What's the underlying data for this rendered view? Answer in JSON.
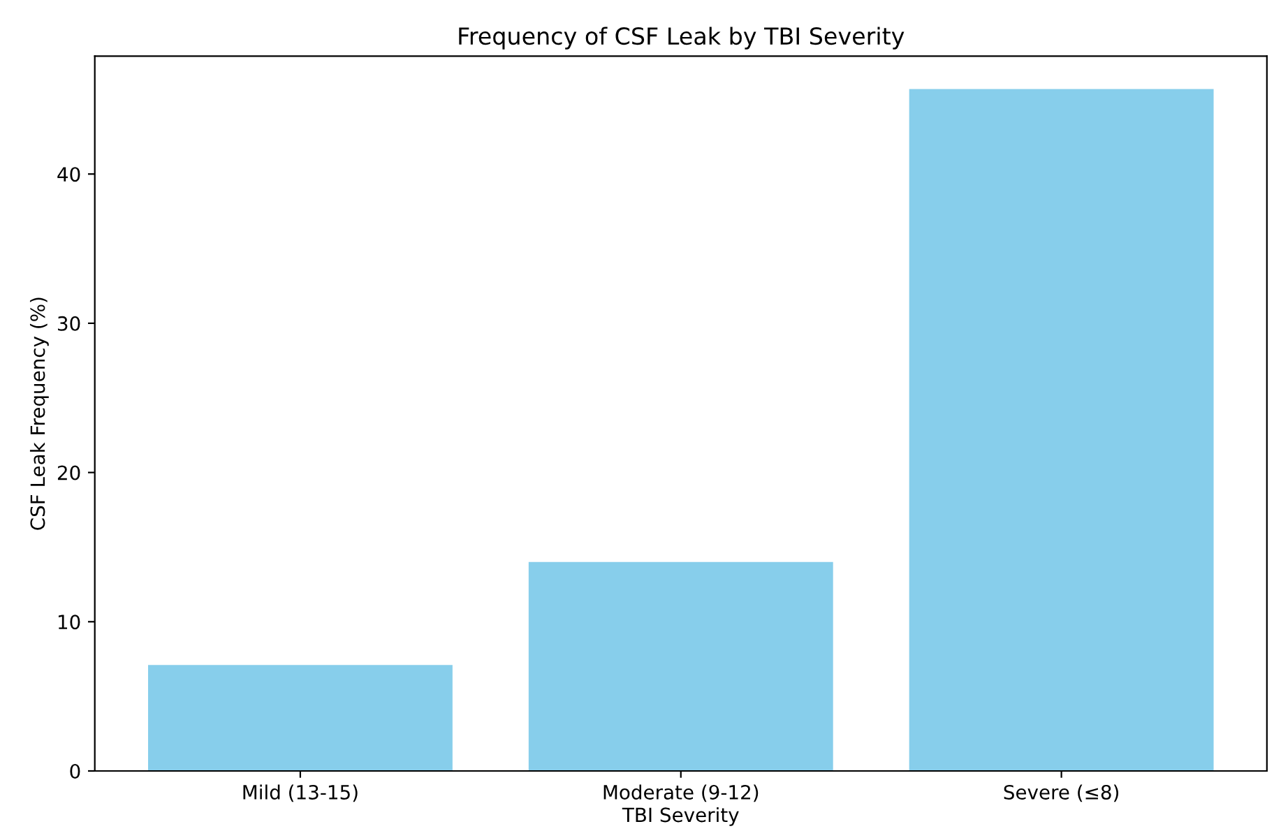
{
  "chart_data": {
    "type": "bar",
    "title": "Frequency of CSF Leak by TBI Severity",
    "xlabel": "TBI Severity",
    "ylabel": "CSF Leak Frequency (%)",
    "categories": [
      "Mild (13-15)",
      "Moderate (9-12)",
      "Severe (≤8)"
    ],
    "values": [
      7.1,
      14.0,
      45.7
    ],
    "color": "#87ceeb",
    "ylim": [
      0,
      47.9
    ],
    "yticks": [
      0,
      10,
      20,
      30,
      40
    ],
    "grid": false
  }
}
